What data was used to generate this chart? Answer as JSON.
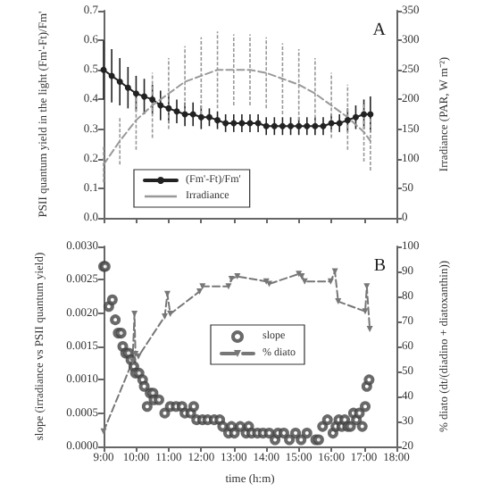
{
  "chart_data": [
    {
      "type": "line",
      "ylabel": "PSII quantum yield in the light (Fm'-Ft)/Fm'",
      "y2label": "Irradiance (PAR, W m⁻²)",
      "annotations": [
        "A"
      ],
      "xlim": [
        9,
        18
      ],
      "xticks": [
        9,
        10,
        11,
        12,
        13,
        14,
        15,
        16,
        17,
        18
      ],
      "ylim": [
        0,
        0.7
      ],
      "yticks": [
        {
          "value": 0,
          "label": "0.0"
        },
        0.1,
        0.2,
        0.3,
        0.4,
        0.5,
        0.6,
        0.7
      ],
      "y2lim": [
        0,
        350
      ],
      "y2ticks": [
        0,
        50,
        100,
        150,
        200,
        250,
        300,
        350
      ],
      "tick_labels": "y",
      "legend": "bottom left",
      "grid": false,
      "series": [
        {
          "name": "(Fm'-Ft)/Fm'",
          "color": "#222222",
          "marker": "circle",
          "line_style": "solid",
          "x": [
            9,
            9.25,
            9.5,
            9.75,
            10,
            10.25,
            10.5,
            10.75,
            11,
            11.25,
            11.5,
            11.75,
            12,
            12.25,
            12.5,
            12.75,
            13,
            13.25,
            13.5,
            13.75,
            14,
            14.25,
            14.5,
            14.75,
            15,
            15.25,
            15.5,
            15.75,
            16,
            16.25,
            16.5,
            16.75,
            17,
            17.2
          ],
          "values": [
            0.5,
            0.48,
            0.46,
            0.44,
            0.42,
            0.41,
            0.4,
            0.38,
            0.37,
            0.36,
            0.35,
            0.35,
            0.34,
            0.34,
            0.33,
            0.32,
            0.32,
            0.32,
            0.32,
            0.32,
            0.31,
            0.31,
            0.31,
            0.31,
            0.31,
            0.31,
            0.31,
            0.31,
            0.32,
            0.32,
            0.33,
            0.34,
            0.35,
            0.35
          ],
          "errors": [
            0.1,
            0.09,
            0.08,
            0.07,
            0.06,
            0.06,
            0.05,
            0.05,
            0.05,
            0.04,
            0.04,
            0.04,
            0.04,
            0.03,
            0.03,
            0.03,
            0.03,
            0.03,
            0.03,
            0.03,
            0.03,
            0.03,
            0.03,
            0.03,
            0.03,
            0.03,
            0.03,
            0.03,
            0.03,
            0.03,
            0.04,
            0.04,
            0.05,
            0.06
          ]
        },
        {
          "name": "Irradiance",
          "color": "#999999",
          "axis": "y2",
          "marker": "none",
          "line_style": "dashed",
          "x": [
            9,
            9.5,
            10,
            10.5,
            11,
            11.5,
            12,
            12.5,
            13,
            13.5,
            14,
            14.5,
            15,
            15.5,
            16,
            16.5,
            17,
            17.2
          ],
          "values": [
            90,
            130,
            165,
            190,
            210,
            230,
            240,
            250,
            250,
            250,
            245,
            235,
            225,
            210,
            190,
            170,
            145,
            130
          ],
          "errors": [
            30,
            40,
            50,
            55,
            60,
            60,
            65,
            65,
            60,
            60,
            60,
            60,
            60,
            60,
            55,
            55,
            50,
            50
          ]
        }
      ]
    },
    {
      "type": "scatter",
      "xlabel": "time (h:m)",
      "ylabel": "slope (irradiance vs PSII quantum yield)",
      "y2label": "% diato (dt/(diadino + diatoxanthin))",
      "annotations": [
        "B"
      ],
      "xlim": [
        9,
        18
      ],
      "xticks": [
        {
          "value": 9,
          "label": "9:00"
        },
        {
          "value": 10,
          "label": "10:00"
        },
        {
          "value": 11,
          "label": "11:00"
        },
        {
          "value": 12,
          "label": "12:00"
        },
        {
          "value": 13,
          "label": "13:00"
        },
        {
          "value": 14,
          "label": "14:00"
        },
        {
          "value": 15,
          "label": "15:00"
        },
        {
          "value": 16,
          "label": "16:00"
        },
        {
          "value": 17,
          "label": "17:00"
        },
        {
          "value": 18,
          "label": "18:00"
        }
      ],
      "ylim": [
        0,
        0.003
      ],
      "yticks": [
        {
          "value": 0,
          "label": "0.0000"
        },
        {
          "value": 0.0005,
          "label": "0.0005"
        },
        {
          "value": 0.001,
          "label": "0.0010"
        },
        {
          "value": 0.0015,
          "label": "0.0015"
        },
        {
          "value": 0.002,
          "label": "0.0020"
        },
        {
          "value": 0.0025,
          "label": "0.0025"
        },
        {
          "value": 0.003,
          "label": "0.0030"
        }
      ],
      "y2lim": [
        20,
        100
      ],
      "y2ticks": [
        20,
        30,
        40,
        50,
        60,
        70,
        80,
        90,
        100
      ],
      "legend": "center",
      "grid": false,
      "series": [
        {
          "name": "slope",
          "color": "#444444",
          "marker": "circle",
          "x": [
            9,
            9.05,
            9.16,
            9.27,
            9.36,
            9.45,
            9.54,
            9.59,
            9.68,
            9.77,
            9.84,
            9.93,
            9.98,
            10.09,
            10.2,
            10.25,
            10.34,
            10.43,
            10.52,
            10.55,
            10.7,
            10.88,
            11.05,
            11.23,
            11.41,
            11.5,
            11.68,
            11.77,
            11.86,
            12.04,
            12.2,
            12.4,
            12.57,
            12.66,
            12.84,
            12.93,
            13.02,
            13.2,
            13.38,
            13.46,
            13.55,
            13.73,
            13.9,
            14.09,
            14.27,
            14.36,
            14.54,
            14.71,
            14.9,
            15.07,
            15.25,
            15.52,
            15.61,
            15.73,
            15.88,
            16.05,
            16.14,
            16.23,
            16.32,
            16.41,
            16.5,
            16.59,
            16.68,
            16.77,
            16.86,
            16.95,
            17.04,
            17.09,
            17.16
          ],
          "values": [
            0.0027,
            0.0027,
            0.0021,
            0.0022,
            0.0019,
            0.0017,
            0.0017,
            0.0015,
            0.0014,
            0.0014,
            0.0013,
            0.0012,
            0.0011,
            0.0011,
            0.001,
            0.0009,
            0.0006,
            0.0008,
            0.0008,
            0.0007,
            0.0007,
            0.0005,
            0.0006,
            0.0006,
            0.0006,
            0.0005,
            0.0005,
            0.0006,
            0.0004,
            0.0004,
            0.0004,
            0.0004,
            0.0004,
            0.0003,
            0.0002,
            0.0003,
            0.0002,
            0.0003,
            0.0002,
            0.0003,
            0.0002,
            0.0002,
            0.0002,
            0.0002,
            0.0001,
            0.0002,
            0.0002,
            0.0001,
            0.0002,
            0.0001,
            0.0002,
            0.0001,
            0.0001,
            0.0003,
            0.0004,
            0.0002,
            0.0003,
            0.0004,
            0.0003,
            0.0004,
            0.0003,
            0.0003,
            0.0005,
            0.0004,
            0.0005,
            0.0003,
            0.0006,
            0.0009,
            0.001
          ]
        },
        {
          "name": "% diato",
          "type": "line",
          "axis": "y2",
          "color": "#777777",
          "marker": "triangle",
          "line_style": "dashed",
          "x": [
            9,
            9.89,
            9.95,
            9.98,
            10.07,
            10.88,
            10.96,
            11.05,
            11.95,
            12.04,
            12.84,
            12.93,
            13.11,
            14,
            14.09,
            15,
            15.09,
            15.18,
            15.98,
            16.11,
            16.21,
            17.04,
            17.09,
            17.18
          ],
          "values": [
            26,
            54,
            73,
            57,
            56,
            72,
            81,
            73,
            82,
            84,
            84,
            87,
            88,
            86,
            85,
            89,
            88,
            86,
            86,
            90,
            78,
            74,
            84,
            67
          ]
        }
      ]
    }
  ]
}
